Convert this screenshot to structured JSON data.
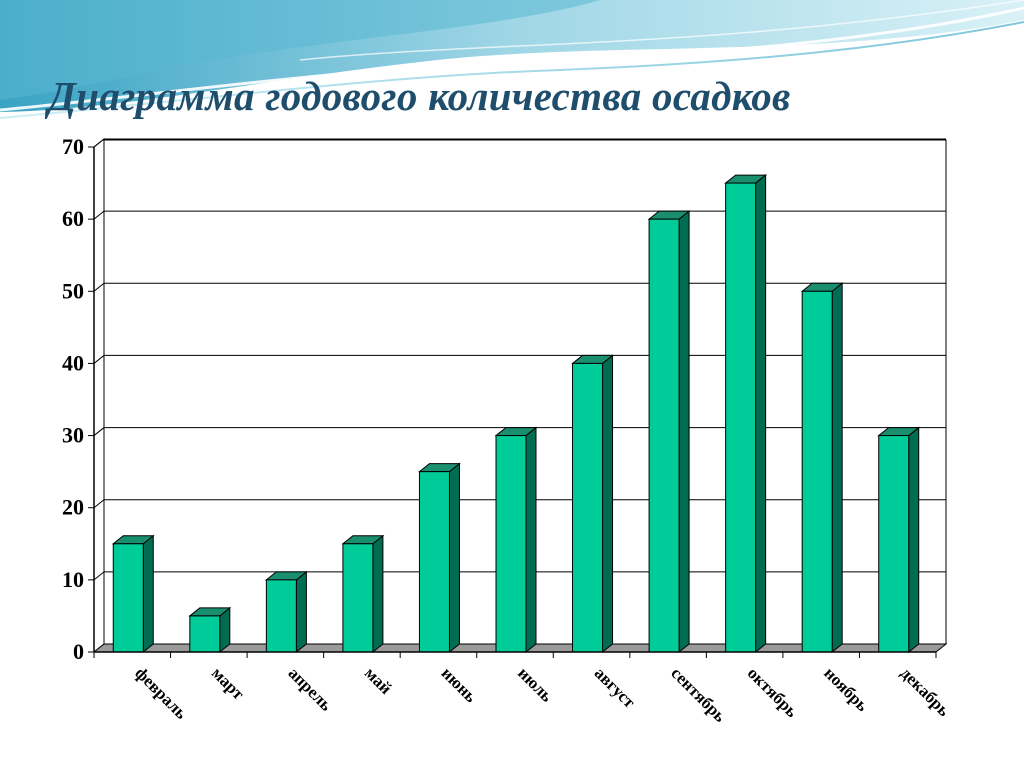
{
  "slide": {
    "title": "Диаграмма годового количества осадков"
  },
  "colors": {
    "bar_front": "#00cc99",
    "bar_side": "#006d52",
    "bar_top": "#1a8f6f",
    "grid": "#000000",
    "title": "#1f4e6c",
    "banner_dark": "#4fb0cc",
    "banner_light": "#bfe6f0"
  },
  "chart_data": {
    "type": "bar",
    "title": "",
    "xlabel": "",
    "ylabel": "",
    "style": "3d-clustered-column",
    "grid": true,
    "legend": "none",
    "ylim": [
      0,
      70
    ],
    "yticks": [
      0,
      10,
      20,
      30,
      40,
      50,
      60,
      70
    ],
    "categories": [
      "февраль",
      "март",
      "апрель",
      "май",
      "июнь",
      "июль",
      "август",
      "сентябрь",
      "октябрь",
      "ноябрь",
      "декабрь"
    ],
    "values": [
      15,
      5,
      10,
      15,
      25,
      30,
      40,
      60,
      65,
      50,
      30
    ]
  }
}
